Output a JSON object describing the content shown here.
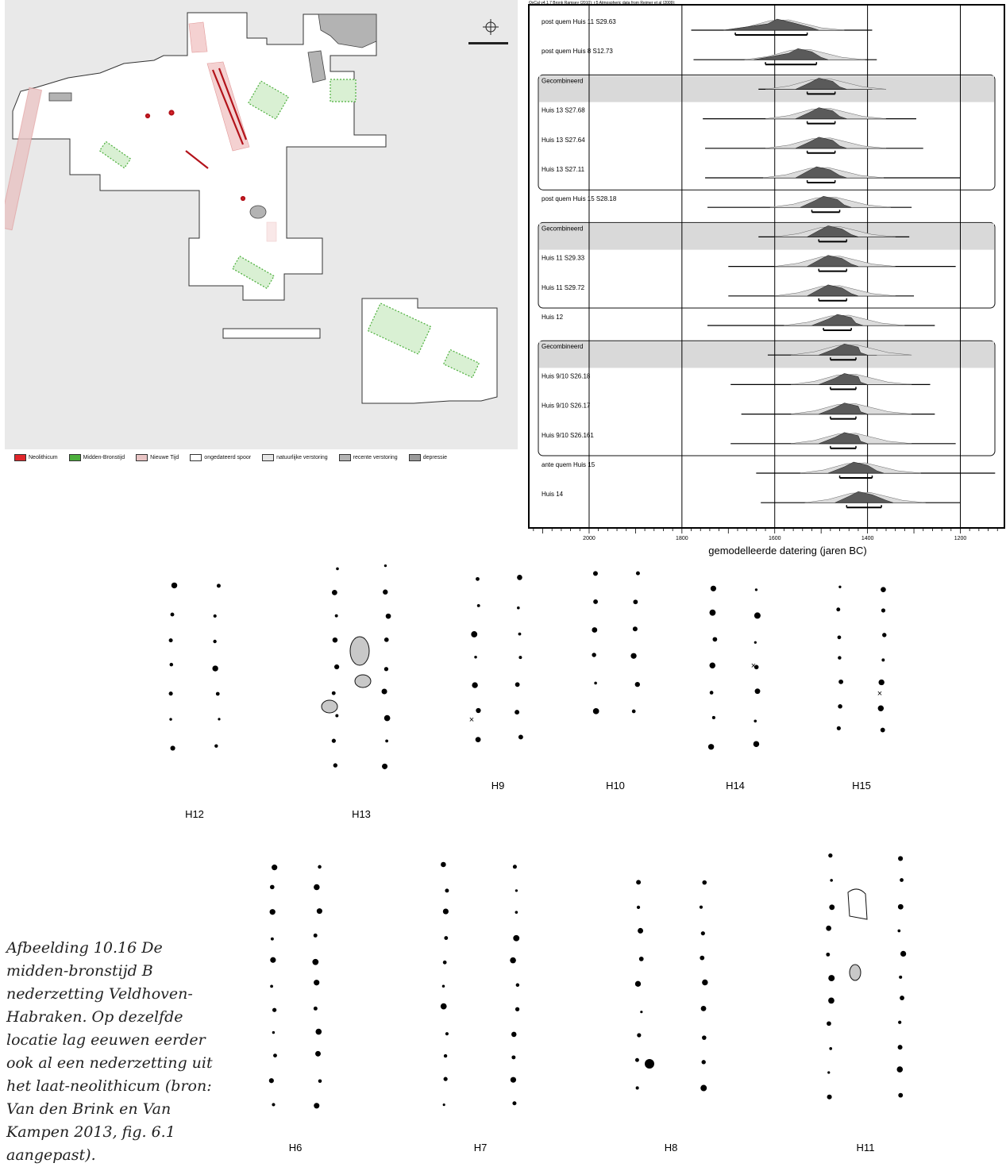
{
  "map": {
    "legend": [
      {
        "label": "Neolithicum",
        "color": "#e0262b"
      },
      {
        "label": "Midden-Bronstijd",
        "color": "#4caf3c"
      },
      {
        "label": "Nieuwe Tijd",
        "color": "#e8c4c4"
      },
      {
        "label": "ongedateerd spoor",
        "color": "#ffffff"
      },
      {
        "label": "natuurlijke verstoring",
        "color": "#e6e6e6"
      },
      {
        "label": "recente verstoring",
        "color": "#b3b3b3"
      },
      {
        "label": "depressie",
        "color": "#9a9a9a"
      }
    ]
  },
  "chart_data": {
    "type": "range-plot",
    "header_note": "OxCal v4.1.7 Bronk Ramsey (2010); r:5 Atmospheric data from Reimer et al (2009);",
    "xlabel": "gemodelleerde datering (jaren BC)",
    "x_ticks": [
      2000,
      1800,
      1600,
      1400,
      1200
    ],
    "xlim": [
      2130,
      1105
    ],
    "x_reversed": true,
    "rows": [
      {
        "label": "post quem Huis 11 S29.63",
        "combined": false,
        "range": [
          1780,
          1390
        ],
        "hpd": [
          1685,
          1530
        ],
        "peak": 1590
      },
      {
        "label": "post quem Huis 8 S12.73",
        "combined": false,
        "range": [
          1775,
          1380
        ],
        "hpd": [
          1620,
          1510
        ],
        "peak": 1545
      },
      {
        "label": "Gecombineerd",
        "combined": true,
        "range": [
          1635,
          1390
        ],
        "hpd": [
          1530,
          1470
        ],
        "peak": 1500
      },
      {
        "label": "Huis 13 S27.68",
        "combined": false,
        "range": [
          1755,
          1295
        ],
        "hpd": [
          1530,
          1470
        ],
        "peak": 1500
      },
      {
        "label": "Huis 13 S27.64",
        "combined": false,
        "range": [
          1750,
          1280
        ],
        "hpd": [
          1530,
          1470
        ],
        "peak": 1500
      },
      {
        "label": "Huis 13 S27.11",
        "combined": false,
        "range": [
          1750,
          1200
        ],
        "hpd": [
          1530,
          1470
        ],
        "peak": 1505
      },
      {
        "label": "post quem Huis 15 S28.18",
        "combined": false,
        "range": [
          1745,
          1305
        ],
        "hpd": [
          1520,
          1460
        ],
        "peak": 1490
      },
      {
        "label": "Gecombineerd",
        "combined": true,
        "range": [
          1635,
          1310
        ],
        "hpd": [
          1505,
          1445
        ],
        "peak": 1480
      },
      {
        "label": "Huis 11 S29.33",
        "combined": false,
        "range": [
          1700,
          1210
        ],
        "hpd": [
          1505,
          1445
        ],
        "peak": 1480
      },
      {
        "label": "Huis 11 S29.72",
        "combined": false,
        "range": [
          1700,
          1300
        ],
        "hpd": [
          1505,
          1445
        ],
        "peak": 1480
      },
      {
        "label": "Huis 12",
        "combined": false,
        "range": [
          1745,
          1255
        ],
        "hpd": [
          1495,
          1435
        ],
        "peak": 1460
      },
      {
        "label": "Gecombineerd",
        "combined": true,
        "range": [
          1615,
          1380
        ],
        "hpd": [
          1480,
          1425
        ],
        "peak": 1445
      },
      {
        "label": "Huis 9/10 S26.18",
        "combined": false,
        "range": [
          1695,
          1265
        ],
        "hpd": [
          1480,
          1425
        ],
        "peak": 1445
      },
      {
        "label": "Huis 9/10 S26.17",
        "combined": false,
        "range": [
          1672,
          1255
        ],
        "hpd": [
          1480,
          1425
        ],
        "peak": 1445
      },
      {
        "label": "Huis 9/10 S26.161",
        "combined": false,
        "range": [
          1695,
          1210
        ],
        "hpd": [
          1480,
          1425
        ],
        "peak": 1445
      },
      {
        "label": "ante quem Huis 15",
        "combined": false,
        "range": [
          1640,
          1125
        ],
        "hpd": [
          1460,
          1390
        ],
        "peak": 1425
      },
      {
        "label": "Huis 14",
        "combined": false,
        "range": [
          1630,
          1200
        ],
        "hpd": [
          1445,
          1370
        ],
        "peak": 1415
      }
    ]
  },
  "houses_row_1": [
    "H12",
    "H13",
    "H9",
    "H10",
    "H14",
    "H15"
  ],
  "houses_row_2": [
    "H6",
    "H7",
    "H8",
    "H11"
  ],
  "caption": "Afbeelding 10.16 De midden-bronstijd B nederzetting Veldhoven-Habraken. Op dezelfde locatie lag eeuwen eerder ook al een nederzetting uit het laat-neolithicum (bron: Van den Brink en Van Kampen 2013, fig. 6.1 aangepast)."
}
